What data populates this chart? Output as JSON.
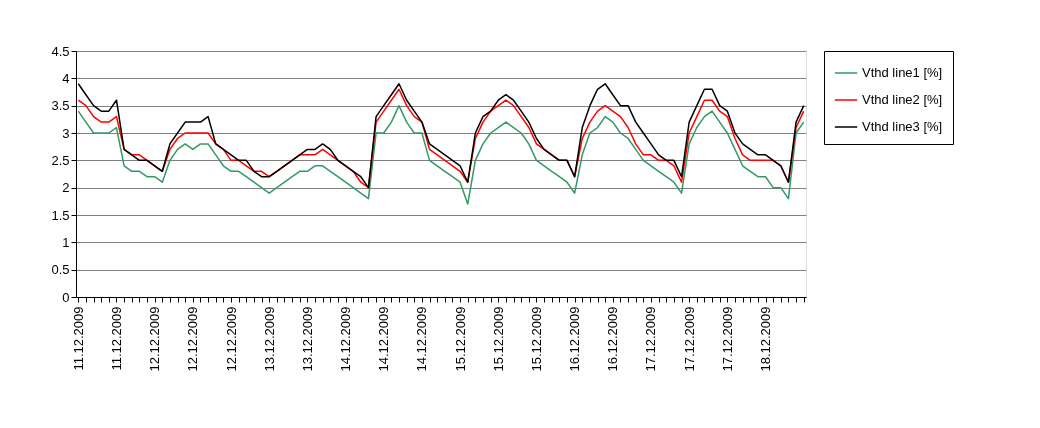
{
  "chart_data": {
    "type": "line",
    "categories": [
      "11.12.2009",
      null,
      null,
      null,
      null,
      "11.12.2009",
      null,
      null,
      null,
      null,
      "12.12.2009",
      null,
      null,
      null,
      null,
      "12.12.2009",
      null,
      null,
      null,
      null,
      "12.12.2009",
      null,
      null,
      null,
      null,
      "13.12.2009",
      null,
      null,
      null,
      null,
      "13.12.2009",
      null,
      null,
      null,
      null,
      "14.12.2009",
      null,
      null,
      null,
      null,
      "14.12.2009",
      null,
      null,
      null,
      null,
      "14.12.2009",
      null,
      null,
      null,
      null,
      "15.12.2009",
      null,
      null,
      null,
      null,
      "15.12.2009",
      null,
      null,
      null,
      null,
      "15.12.2009",
      null,
      null,
      null,
      null,
      "16.12.2009",
      null,
      null,
      null,
      null,
      "16.12.2009",
      null,
      null,
      null,
      null,
      "17.12.2009",
      null,
      null,
      null,
      null,
      "17.12.2009",
      null,
      null,
      null,
      null,
      "17.12.2009",
      null,
      null,
      null,
      null,
      "18.12.2009",
      null,
      null,
      null,
      null,
      null
    ],
    "series": [
      {
        "name": "Vthd line1 [%]",
        "color": "#339966",
        "values": [
          3.4,
          3.2,
          3.0,
          3.0,
          3.0,
          3.1,
          2.4,
          2.3,
          2.3,
          2.2,
          2.2,
          2.1,
          2.5,
          2.7,
          2.8,
          2.7,
          2.8,
          2.8,
          2.6,
          2.4,
          2.3,
          2.3,
          2.2,
          2.1,
          2.0,
          1.9,
          2.0,
          2.1,
          2.2,
          2.3,
          2.3,
          2.4,
          2.4,
          2.3,
          2.2,
          2.1,
          2.0,
          1.9,
          1.8,
          3.0,
          3.0,
          3.2,
          3.5,
          3.2,
          3.0,
          3.0,
          2.5,
          2.4,
          2.3,
          2.2,
          2.1,
          1.7,
          2.5,
          2.8,
          3.0,
          3.1,
          3.2,
          3.1,
          3.0,
          2.8,
          2.5,
          2.4,
          2.3,
          2.2,
          2.1,
          1.9,
          2.6,
          3.0,
          3.1,
          3.3,
          3.2,
          3.0,
          2.9,
          2.7,
          2.5,
          2.4,
          2.3,
          2.2,
          2.1,
          1.9,
          2.8,
          3.1,
          3.3,
          3.4,
          3.2,
          3.0,
          2.7,
          2.4,
          2.3,
          2.2,
          2.2,
          2.0,
          2.0,
          1.8,
          3.0,
          3.2
        ]
      },
      {
        "name": "Vthd line2 [%]",
        "color": "#ff0000",
        "values": [
          3.6,
          3.5,
          3.3,
          3.2,
          3.2,
          3.3,
          2.7,
          2.6,
          2.6,
          2.5,
          2.4,
          2.3,
          2.7,
          2.9,
          3.0,
          3.0,
          3.0,
          3.0,
          2.8,
          2.7,
          2.5,
          2.5,
          2.4,
          2.3,
          2.3,
          2.2,
          2.3,
          2.4,
          2.5,
          2.6,
          2.6,
          2.6,
          2.7,
          2.6,
          2.5,
          2.4,
          2.3,
          2.1,
          2.0,
          3.2,
          3.4,
          3.6,
          3.8,
          3.5,
          3.3,
          3.2,
          2.7,
          2.6,
          2.5,
          2.4,
          2.3,
          2.1,
          2.9,
          3.2,
          3.4,
          3.5,
          3.6,
          3.5,
          3.3,
          3.1,
          2.8,
          2.7,
          2.6,
          2.5,
          2.5,
          2.2,
          2.9,
          3.2,
          3.4,
          3.5,
          3.4,
          3.3,
          3.1,
          2.8,
          2.6,
          2.6,
          2.5,
          2.5,
          2.4,
          2.1,
          3.0,
          3.3,
          3.6,
          3.6,
          3.4,
          3.3,
          2.9,
          2.6,
          2.5,
          2.5,
          2.5,
          2.5,
          2.4,
          2.1,
          3.1,
          3.4
        ]
      },
      {
        "name": "Vthd line3 [%]",
        "color": "#000000",
        "values": [
          3.9,
          3.7,
          3.5,
          3.4,
          3.4,
          3.6,
          2.7,
          2.6,
          2.5,
          2.5,
          2.4,
          2.3,
          2.8,
          3.0,
          3.2,
          3.2,
          3.2,
          3.3,
          2.8,
          2.7,
          2.6,
          2.5,
          2.5,
          2.3,
          2.2,
          2.2,
          2.3,
          2.4,
          2.5,
          2.6,
          2.7,
          2.7,
          2.8,
          2.7,
          2.5,
          2.4,
          2.3,
          2.2,
          2.0,
          3.3,
          3.5,
          3.7,
          3.9,
          3.6,
          3.4,
          3.2,
          2.8,
          2.7,
          2.6,
          2.5,
          2.4,
          2.1,
          3.0,
          3.3,
          3.4,
          3.6,
          3.7,
          3.6,
          3.4,
          3.2,
          2.9,
          2.7,
          2.6,
          2.5,
          2.5,
          2.2,
          3.1,
          3.5,
          3.8,
          3.9,
          3.7,
          3.5,
          3.5,
          3.2,
          3.0,
          2.8,
          2.6,
          2.5,
          2.5,
          2.2,
          3.2,
          3.5,
          3.8,
          3.8,
          3.5,
          3.4,
          3.0,
          2.8,
          2.7,
          2.6,
          2.6,
          2.5,
          2.4,
          2.1,
          3.2,
          3.5
        ]
      }
    ],
    "ylim": [
      0,
      4.5
    ],
    "yticks": [
      0,
      0.5,
      1,
      1.5,
      2,
      2.5,
      3,
      3.5,
      4,
      4.5
    ],
    "grid": "y",
    "legend": "right"
  }
}
